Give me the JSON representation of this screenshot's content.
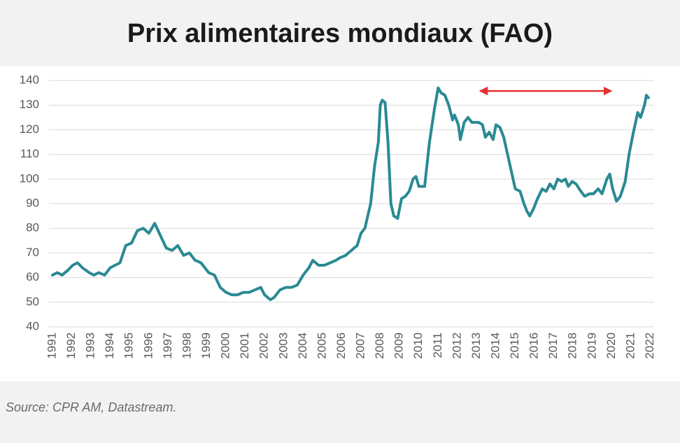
{
  "chart_data": {
    "type": "line",
    "title": "Prix alimentaires mondiaux (FAO)",
    "source": "Source: CPR AM, Datastream.",
    "color": "#2a8a93",
    "grid": true,
    "xlim": [
      1991,
      2022.2
    ],
    "xticks": [
      1991,
      1992,
      1993,
      1994,
      1995,
      1996,
      1997,
      1998,
      1999,
      2000,
      2001,
      2002,
      2003,
      2004,
      2005,
      2006,
      2007,
      2008,
      2009,
      2010,
      2011,
      2012,
      2013,
      2014,
      2015,
      2016,
      2017,
      2018,
      2019,
      2020,
      2021,
      2022
    ],
    "ylim": [
      40,
      140
    ],
    "yticks": [
      40,
      50,
      60,
      70,
      80,
      90,
      100,
      110,
      120,
      130,
      140
    ],
    "x": [
      1991.0,
      1991.25,
      1991.5,
      1991.8,
      1992.05,
      1992.3,
      1992.55,
      1992.9,
      1993.15,
      1993.4,
      1993.7,
      1994.0,
      1994.25,
      1994.5,
      1994.8,
      1995.1,
      1995.4,
      1995.7,
      1996.0,
      1996.3,
      1996.6,
      1996.9,
      1997.2,
      1997.5,
      1997.8,
      1998.1,
      1998.4,
      1998.7,
      1999.1,
      1999.4,
      1999.7,
      2000.0,
      2000.3,
      2000.6,
      2000.9,
      2001.2,
      2001.5,
      2001.8,
      2002.0,
      2002.3,
      2002.5,
      2002.8,
      2003.1,
      2003.4,
      2003.7,
      2004.0,
      2004.3,
      2004.5,
      2004.8,
      2005.1,
      2005.4,
      2005.7,
      2005.9,
      2006.2,
      2006.5,
      2006.8,
      2007.0,
      2007.2,
      2007.5,
      2007.7,
      2007.9,
      2008.0,
      2008.1,
      2008.25,
      2008.4,
      2008.55,
      2008.7,
      2008.9,
      2009.1,
      2009.3,
      2009.5,
      2009.7,
      2009.85,
      2010.0,
      2010.3,
      2010.55,
      2010.8,
      2011.0,
      2011.15,
      2011.35,
      2011.55,
      2011.75,
      2011.85,
      2012.05,
      2012.15,
      2012.35,
      2012.55,
      2012.75,
      2013.1,
      2013.3,
      2013.45,
      2013.65,
      2013.85,
      2014.0,
      2014.2,
      2014.4,
      2014.6,
      2014.8,
      2015.0,
      2015.25,
      2015.45,
      2015.6,
      2015.75,
      2015.95,
      2016.15,
      2016.4,
      2016.6,
      2016.8,
      2017.0,
      2017.2,
      2017.4,
      2017.6,
      2017.75,
      2017.95,
      2018.15,
      2018.4,
      2018.6,
      2018.85,
      2019.05,
      2019.3,
      2019.5,
      2019.75,
      2019.9,
      2020.05,
      2020.25,
      2020.45,
      2020.7,
      2020.9,
      2021.1,
      2021.35,
      2021.5,
      2021.7,
      2021.8,
      2021.9
    ],
    "values": [
      61,
      62,
      61,
      63,
      65,
      66,
      64,
      62,
      61,
      62,
      61,
      64,
      65,
      66,
      73,
      74,
      79,
      80,
      78,
      82,
      77,
      72,
      71,
      73,
      69,
      70,
      67,
      66,
      62,
      61,
      56,
      54,
      53,
      53,
      54,
      54,
      55,
      56,
      53,
      51,
      52,
      55,
      56,
      56,
      57,
      61,
      64,
      67,
      65,
      65,
      66,
      67,
      68,
      69,
      71,
      73,
      78,
      80,
      90,
      105,
      115,
      130,
      132,
      131,
      115,
      90,
      85,
      84,
      92,
      93,
      95,
      100,
      101,
      97,
      97,
      115,
      128,
      137,
      135,
      134,
      130,
      124,
      126,
      122,
      116,
      123,
      125,
      123,
      123,
      122,
      117,
      119,
      116,
      122,
      121,
      117,
      110,
      103,
      96,
      95,
      90,
      87,
      85,
      88,
      92,
      96,
      95,
      98,
      96,
      100,
      99,
      100,
      97,
      99,
      98,
      95,
      93,
      94,
      94,
      96,
      94,
      100,
      102,
      96,
      91,
      93,
      99,
      110,
      118,
      127,
      125,
      130,
      134,
      133
    ]
  }
}
